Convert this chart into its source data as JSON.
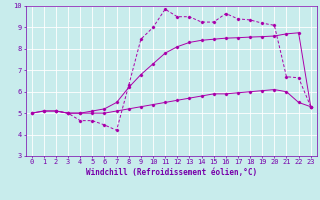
{
  "xlabel": "Windchill (Refroidissement éolien,°C)",
  "background_color": "#c8ecec",
  "grid_color": "#ffffff",
  "line_color": "#aa00aa",
  "xlim": [
    -0.5,
    23.5
  ],
  "ylim": [
    3,
    10
  ],
  "xticks": [
    0,
    1,
    2,
    3,
    4,
    5,
    6,
    7,
    8,
    9,
    10,
    11,
    12,
    13,
    14,
    15,
    16,
    17,
    18,
    19,
    20,
    21,
    22,
    23
  ],
  "yticks": [
    3,
    4,
    5,
    6,
    7,
    8,
    9,
    10
  ],
  "line1_x": [
    0,
    1,
    2,
    3,
    4,
    5,
    6,
    7,
    8,
    9,
    10,
    11,
    12,
    13,
    14,
    15,
    16,
    17,
    18,
    19,
    20,
    21,
    22,
    23
  ],
  "line1_y": [
    5.0,
    5.1,
    5.1,
    5.0,
    5.0,
    5.0,
    5.0,
    5.1,
    5.2,
    5.3,
    5.4,
    5.5,
    5.6,
    5.7,
    5.8,
    5.9,
    5.9,
    5.95,
    6.0,
    6.05,
    6.1,
    6.0,
    5.5,
    5.3
  ],
  "line2_x": [
    0,
    1,
    2,
    3,
    4,
    5,
    6,
    7,
    8,
    9,
    10,
    11,
    12,
    13,
    14,
    15,
    16,
    17,
    18,
    19,
    20,
    21,
    22,
    23
  ],
  "line2_y": [
    5.0,
    5.1,
    5.1,
    5.0,
    5.0,
    5.1,
    5.2,
    5.5,
    6.2,
    6.8,
    7.3,
    7.8,
    8.1,
    8.3,
    8.4,
    8.45,
    8.5,
    8.52,
    8.55,
    8.57,
    8.6,
    8.7,
    8.75,
    5.3
  ],
  "line3_x": [
    2,
    3,
    4,
    5,
    6,
    7,
    8,
    9,
    10,
    11,
    12,
    13,
    14,
    15,
    16,
    17,
    18,
    19,
    20,
    21,
    22,
    23
  ],
  "line3_y": [
    5.1,
    5.0,
    4.65,
    4.65,
    4.45,
    4.2,
    6.3,
    8.45,
    9.0,
    9.85,
    9.5,
    9.5,
    9.25,
    9.25,
    9.65,
    9.4,
    9.35,
    9.2,
    9.1,
    6.7,
    6.65,
    5.3
  ],
  "font_color": "#7700aa",
  "tick_fontsize": 5.0,
  "label_fontsize": 5.5
}
